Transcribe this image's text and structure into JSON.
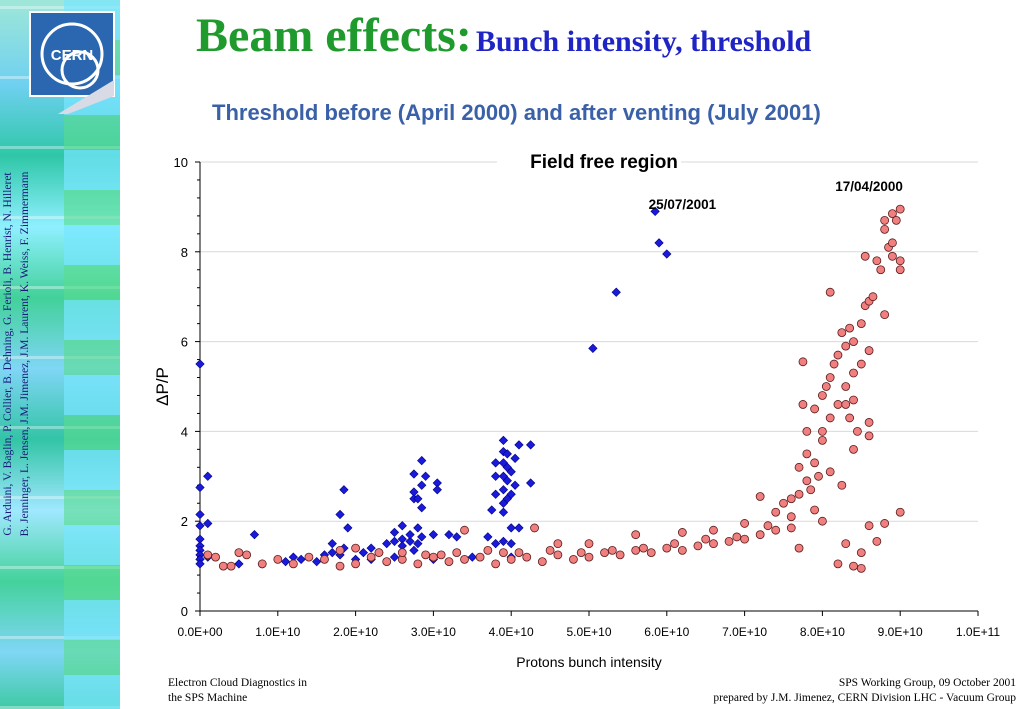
{
  "slide": {
    "title_main": "Beam effects:",
    "title_sub": "Bunch intensity, threshold",
    "subtitle": "Threshold before (April 2000) and after venting (July 2001)",
    "logo_text": "CERN",
    "credits_line1": "G. Arduini, V. Baglin, P. Collier, B. Dehning, G. Ferioli, B. Henrist, N. Hilleret",
    "credits_line2": "B. Jenninger, L. Jensen, J.M. Jimenez, J.M. Laurent, K. Weiss, F. Zimmermann",
    "footer_left_1": "Electron Cloud Diagnostics in",
    "footer_left_2": "the SPS Machine",
    "footer_right_1": "SPS Working Group, 09 October 2001",
    "footer_right_2": "prepared by J.M. Jimenez, CERN Division LHC - Vacuum Group",
    "colors": {
      "title_green": "#1f9a2d",
      "title_blue": "#1f24c4",
      "subtitle_blue": "#3a61a8"
    }
  },
  "chart_data": {
    "type": "scatter",
    "title": "Field free region",
    "xlabel": "Protons bunch intensity",
    "ylabel": "ΔP/P",
    "xlim": [
      0,
      100000000000.0
    ],
    "ylim": [
      0,
      10
    ],
    "x_ticks": [
      "0.0E+00",
      "1.0E+10",
      "2.0E+10",
      "3.0E+10",
      "4.0E+10",
      "5.0E+10",
      "6.0E+10",
      "7.0E+10",
      "8.0E+10",
      "9.0E+10",
      "1.0E+11"
    ],
    "y_ticks": [
      "0",
      "2",
      "4",
      "6",
      "8",
      "10"
    ],
    "grid": "horizontal",
    "series": [
      {
        "name": "25/07/2001",
        "marker": "diamond",
        "color": "#1a1adb",
        "points": [
          [
            0,
            5.5
          ],
          [
            0,
            2.75
          ],
          [
            0,
            2.15
          ],
          [
            0,
            1.9
          ],
          [
            0,
            1.6
          ],
          [
            0,
            1.45
          ],
          [
            0,
            1.35
          ],
          [
            0,
            1.25
          ],
          [
            0,
            1.15
          ],
          [
            0,
            1.05
          ],
          [
            1000000000.0,
            3.0
          ],
          [
            1000000000.0,
            1.95
          ],
          [
            1000000000.0,
            1.2
          ],
          [
            7000000000.0,
            1.7
          ],
          [
            8000000000.0,
            1.05
          ],
          [
            11000000000.0,
            1.1
          ],
          [
            13000000000.0,
            1.15
          ],
          [
            15000000000.0,
            1.1
          ],
          [
            16000000000.0,
            1.25
          ],
          [
            17000000000.0,
            1.3
          ],
          [
            17000000000.0,
            1.5
          ],
          [
            18000000000.0,
            1.25
          ],
          [
            18500000000.0,
            1.4
          ],
          [
            18000000000.0,
            2.15
          ],
          [
            18500000000.0,
            2.7
          ],
          [
            19000000000.0,
            1.85
          ],
          [
            20000000000.0,
            1.15
          ],
          [
            21000000000.0,
            1.3
          ],
          [
            22000000000.0,
            1.4
          ],
          [
            23000000000.0,
            1.3
          ],
          [
            24000000000.0,
            1.5
          ],
          [
            25000000000.0,
            1.55
          ],
          [
            25000000000.0,
            1.75
          ],
          [
            26000000000.0,
            1.9
          ],
          [
            26000000000.0,
            1.6
          ],
          [
            26000000000.0,
            1.45
          ],
          [
            27000000000.0,
            1.55
          ],
          [
            27000000000.0,
            1.7
          ],
          [
            27500000000.0,
            1.35
          ],
          [
            28000000000.0,
            1.5
          ],
          [
            28000000000.0,
            1.85
          ],
          [
            28500000000.0,
            1.65
          ],
          [
            27500000000.0,
            2.5
          ],
          [
            27500000000.0,
            2.65
          ],
          [
            27500000000.0,
            3.05
          ],
          [
            28000000000.0,
            2.5
          ],
          [
            28500000000.0,
            2.3
          ],
          [
            28500000000.0,
            2.8
          ],
          [
            28500000000.0,
            3.35
          ],
          [
            29000000000.0,
            3.0
          ],
          [
            30500000000.0,
            2.85
          ],
          [
            30500000000.0,
            2.7
          ],
          [
            30000000000.0,
            1.7
          ],
          [
            32000000000.0,
            1.7
          ],
          [
            33000000000.0,
            1.65
          ],
          [
            38000000000.0,
            1.5
          ],
          [
            39000000000.0,
            1.55
          ],
          [
            40000000000.0,
            1.5
          ],
          [
            39000000000.0,
            2.2
          ],
          [
            39000000000.0,
            2.4
          ],
          [
            39000000000.0,
            2.7
          ],
          [
            39000000000.0,
            3.0
          ],
          [
            39000000000.0,
            3.3
          ],
          [
            39000000000.0,
            3.55
          ],
          [
            39000000000.0,
            3.8
          ],
          [
            39500000000.0,
            2.5
          ],
          [
            39500000000.0,
            2.9
          ],
          [
            39500000000.0,
            3.2
          ],
          [
            39500000000.0,
            3.5
          ],
          [
            40000000000.0,
            2.6
          ],
          [
            40000000000.0,
            3.1
          ],
          [
            40500000000.0,
            2.8
          ],
          [
            40500000000.0,
            3.4
          ],
          [
            41000000000.0,
            1.85
          ],
          [
            41000000000.0,
            3.7
          ],
          [
            38000000000.0,
            2.6
          ],
          [
            38000000000.0,
            3.0
          ],
          [
            38000000000.0,
            3.3
          ],
          [
            42500000000.0,
            3.7
          ],
          [
            42500000000.0,
            2.85
          ],
          [
            37500000000.0,
            2.25
          ],
          [
            37000000000.0,
            1.65
          ],
          [
            40000000000.0,
            1.85
          ],
          [
            50500000000.0,
            5.85
          ],
          [
            53500000000.0,
            7.1
          ],
          [
            58500000000.0,
            8.9
          ],
          [
            59000000000.0,
            8.2
          ],
          [
            60000000000.0,
            7.95
          ],
          [
            40000000000.0,
            1.2
          ],
          [
            35000000000.0,
            1.2
          ],
          [
            30000000000.0,
            1.15
          ],
          [
            22000000000.0,
            1.15
          ],
          [
            12000000000.0,
            1.2
          ],
          [
            5000000000.0,
            1.05
          ],
          [
            25000000000.0,
            1.2
          ]
        ]
      },
      {
        "name": "17/04/2000",
        "marker": "circle",
        "color": "#f08080",
        "points": [
          [
            1000000000.0,
            1.25
          ],
          [
            2000000000.0,
            1.2
          ],
          [
            3000000000.0,
            1.0
          ],
          [
            4000000000.0,
            1.0
          ],
          [
            5000000000.0,
            1.3
          ],
          [
            6000000000.0,
            1.25
          ],
          [
            8000000000.0,
            1.05
          ],
          [
            10000000000.0,
            1.15
          ],
          [
            12000000000.0,
            1.05
          ],
          [
            14000000000.0,
            1.2
          ],
          [
            16000000000.0,
            1.15
          ],
          [
            18000000000.0,
            1.0
          ],
          [
            20000000000.0,
            1.05
          ],
          [
            22000000000.0,
            1.2
          ],
          [
            24000000000.0,
            1.1
          ],
          [
            26000000000.0,
            1.15
          ],
          [
            28000000000.0,
            1.05
          ],
          [
            30000000000.0,
            1.2
          ],
          [
            32000000000.0,
            1.1
          ],
          [
            34000000000.0,
            1.15
          ],
          [
            36000000000.0,
            1.2
          ],
          [
            38000000000.0,
            1.05
          ],
          [
            40000000000.0,
            1.15
          ],
          [
            42000000000.0,
            1.2
          ],
          [
            44000000000.0,
            1.1
          ],
          [
            46000000000.0,
            1.25
          ],
          [
            48000000000.0,
            1.15
          ],
          [
            50000000000.0,
            1.2
          ],
          [
            52000000000.0,
            1.3
          ],
          [
            54000000000.0,
            1.25
          ],
          [
            56000000000.0,
            1.35
          ],
          [
            58000000000.0,
            1.3
          ],
          [
            60000000000.0,
            1.4
          ],
          [
            62000000000.0,
            1.35
          ],
          [
            64000000000.0,
            1.45
          ],
          [
            66000000000.0,
            1.5
          ],
          [
            68000000000.0,
            1.55
          ],
          [
            70000000000.0,
            1.6
          ],
          [
            72000000000.0,
            1.7
          ],
          [
            74000000000.0,
            1.8
          ],
          [
            34000000000.0,
            1.8
          ],
          [
            43000000000.0,
            1.85
          ],
          [
            46000000000.0,
            1.5
          ],
          [
            50000000000.0,
            1.5
          ],
          [
            56000000000.0,
            1.7
          ],
          [
            62000000000.0,
            1.75
          ],
          [
            66000000000.0,
            1.8
          ],
          [
            70000000000.0,
            1.95
          ],
          [
            72000000000.0,
            2.55
          ],
          [
            74000000000.0,
            2.2
          ],
          [
            75000000000.0,
            2.4
          ],
          [
            76000000000.0,
            2.5
          ],
          [
            77000000000.0,
            2.6
          ],
          [
            77000000000.0,
            3.2
          ],
          [
            78000000000.0,
            2.9
          ],
          [
            78000000000.0,
            3.5
          ],
          [
            78000000000.0,
            4.0
          ],
          [
            79000000000.0,
            3.3
          ],
          [
            79000000000.0,
            4.5
          ],
          [
            80000000000.0,
            3.8
          ],
          [
            80000000000.0,
            4.0
          ],
          [
            80000000000.0,
            4.8
          ],
          [
            80500000000.0,
            5.0
          ],
          [
            81000000000.0,
            5.2
          ],
          [
            81000000000.0,
            4.3
          ],
          [
            81500000000.0,
            5.5
          ],
          [
            82000000000.0,
            4.6
          ],
          [
            82000000000.0,
            5.7
          ],
          [
            82500000000.0,
            6.2
          ],
          [
            83000000000.0,
            5.9
          ],
          [
            83000000000.0,
            5.0
          ],
          [
            83500000000.0,
            4.3
          ],
          [
            84000000000.0,
            5.3
          ],
          [
            84000000000.0,
            6.0
          ],
          [
            84000000000.0,
            4.7
          ],
          [
            84500000000.0,
            4.0
          ],
          [
            85000000000.0,
            5.5
          ],
          [
            85000000000.0,
            6.4
          ],
          [
            85500000000.0,
            6.8
          ],
          [
            86000000000.0,
            6.9
          ],
          [
            86000000000.0,
            5.8
          ],
          [
            86500000000.0,
            7.0
          ],
          [
            87000000000.0,
            7.8
          ],
          [
            87500000000.0,
            7.6
          ],
          [
            88000000000.0,
            6.6
          ],
          [
            88000000000.0,
            8.5
          ],
          [
            88000000000.0,
            8.7
          ],
          [
            88500000000.0,
            8.1
          ],
          [
            89000000000.0,
            8.2
          ],
          [
            89000000000.0,
            8.85
          ],
          [
            89500000000.0,
            8.7
          ],
          [
            90000000000.0,
            8.95
          ],
          [
            90000000000.0,
            7.8
          ],
          [
            90000000000.0,
            7.6
          ],
          [
            81000000000.0,
            7.1
          ],
          [
            77500000000.0,
            5.55
          ],
          [
            77500000000.0,
            4.6
          ],
          [
            80000000000.0,
            2.0
          ],
          [
            77000000000.0,
            1.4
          ],
          [
            83000000000.0,
            1.5
          ],
          [
            84000000000.0,
            1.0
          ],
          [
            85000000000.0,
            1.3
          ],
          [
            86000000000.0,
            1.9
          ],
          [
            87000000000.0,
            1.55
          ],
          [
            88000000000.0,
            1.95
          ],
          [
            90000000000.0,
            2.2
          ],
          [
            85000000000.0,
            0.95
          ],
          [
            82000000000.0,
            1.05
          ],
          [
            76000000000.0,
            1.85
          ],
          [
            79000000000.0,
            2.25
          ],
          [
            18000000000.0,
            1.35
          ],
          [
            20000000000.0,
            1.4
          ],
          [
            23000000000.0,
            1.3
          ],
          [
            26000000000.0,
            1.3
          ],
          [
            29000000000.0,
            1.25
          ],
          [
            31000000000.0,
            1.25
          ],
          [
            33000000000.0,
            1.3
          ],
          [
            37000000000.0,
            1.35
          ],
          [
            39000000000.0,
            1.3
          ],
          [
            41000000000.0,
            1.3
          ],
          [
            45000000000.0,
            1.35
          ],
          [
            49000000000.0,
            1.3
          ],
          [
            53000000000.0,
            1.35
          ],
          [
            57000000000.0,
            1.4
          ],
          [
            61000000000.0,
            1.5
          ],
          [
            65000000000.0,
            1.6
          ],
          [
            69000000000.0,
            1.65
          ],
          [
            73000000000.0,
            1.9
          ],
          [
            76000000000.0,
            2.1
          ],
          [
            78500000000.0,
            2.7
          ],
          [
            81000000000.0,
            3.1
          ],
          [
            83000000000.0,
            4.6
          ],
          [
            86000000000.0,
            4.2
          ],
          [
            84000000000.0,
            3.6
          ],
          [
            86000000000.0,
            3.9
          ],
          [
            82500000000.0,
            2.8
          ],
          [
            79500000000.0,
            3.0
          ],
          [
            83500000000.0,
            6.3
          ],
          [
            85500000000.0,
            7.9
          ],
          [
            89000000000.0,
            7.9
          ]
        ]
      }
    ],
    "annotations": [
      {
        "text": "25/07/2001",
        "x": 62000000000.0,
        "y": 8.95
      },
      {
        "text": "17/04/2000",
        "x": 86000000000.0,
        "y": 9.35
      }
    ]
  }
}
